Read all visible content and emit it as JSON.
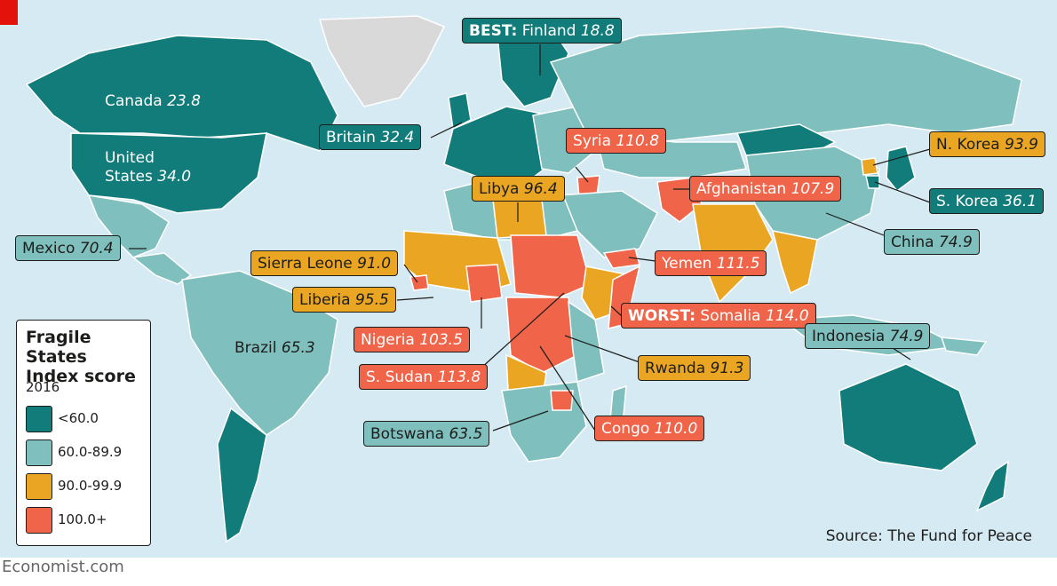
{
  "brand": "Economist.com",
  "source": "Source: The Fund for Peace",
  "colors": {
    "band1": "#117c7a",
    "band2": "#7fbfbe",
    "band3": "#eaa623",
    "band4": "#f06449",
    "nodata": "#d9d9d9",
    "ocean": "#d6eaf3",
    "accent": "#e3120b"
  },
  "legend": {
    "title_line1": "Fragile States",
    "title_line2": "Index score",
    "year": "2016",
    "items": [
      {
        "label": "<60.0",
        "color": "#117c7a"
      },
      {
        "label": "60.0-89.9",
        "color": "#7fbfbe"
      },
      {
        "label": "90.0-99.9",
        "color": "#eaa623"
      },
      {
        "label": "100.0+",
        "color": "#f06449"
      }
    ]
  },
  "countries": {
    "canada": {
      "name": "Canada",
      "value": "23.8"
    },
    "usa": {
      "name_line1": "United",
      "name_line2": "States",
      "value": "34.0"
    },
    "brazil": {
      "name": "Brazil",
      "value": "65.3"
    },
    "mexico": {
      "name": "Mexico",
      "value": "70.4"
    },
    "finland": {
      "prefix": "BEST:",
      "name": "Finland",
      "value": "18.8"
    },
    "britain": {
      "name": "Britain",
      "value": "32.4"
    },
    "syria": {
      "name": "Syria",
      "value": "110.8"
    },
    "libya": {
      "name": "Libya",
      "value": "96.4"
    },
    "sierra_leone": {
      "name": "Sierra Leone",
      "value": "91.0"
    },
    "liberia": {
      "name": "Liberia",
      "value": "95.5"
    },
    "nigeria": {
      "name": "Nigeria",
      "value": "103.5"
    },
    "s_sudan": {
      "name": "S. Sudan",
      "value": "113.8"
    },
    "botswana": {
      "name": "Botswana",
      "value": "63.5"
    },
    "congo": {
      "name": "Congo",
      "value": "110.0"
    },
    "rwanda": {
      "name": "Rwanda",
      "value": "91.3"
    },
    "somalia": {
      "prefix": "WORST:",
      "name": "Somalia",
      "value": "114.0"
    },
    "yemen": {
      "name": "Yemen",
      "value": "111.5"
    },
    "afghanistan": {
      "name": "Afghanistan",
      "value": "107.9"
    },
    "n_korea": {
      "name": "N. Korea",
      "value": "93.9"
    },
    "s_korea": {
      "name": "S. Korea",
      "value": "36.1"
    },
    "china": {
      "name": "China",
      "value": "74.9"
    },
    "indonesia": {
      "name": "Indonesia",
      "value": "74.9"
    }
  }
}
